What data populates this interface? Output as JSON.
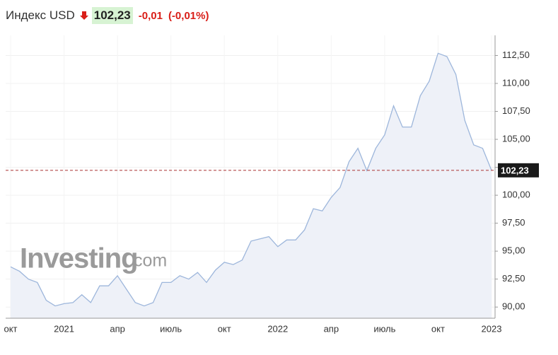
{
  "header": {
    "title": "Индекс USD",
    "price": "102,23",
    "change": "-0,01",
    "change_pct": "(-0,01%)"
  },
  "watermark": {
    "brand": "Investing",
    "suffix": ".com"
  },
  "chart_data": {
    "type": "area",
    "categories": [
      "окт",
      null,
      null,
      null,
      null,
      null,
      "2021",
      null,
      null,
      null,
      null,
      null,
      "апр",
      null,
      null,
      null,
      null,
      null,
      "июль",
      null,
      null,
      null,
      null,
      null,
      "окт",
      null,
      null,
      null,
      null,
      null,
      "2022",
      null,
      null,
      null,
      null,
      null,
      "апр",
      null,
      null,
      null,
      null,
      null,
      "июль",
      null,
      null,
      null,
      null,
      null,
      "окт",
      null,
      null,
      null,
      null,
      null,
      "2023"
    ],
    "series": [
      {
        "name": "Индекс USD",
        "color": "#9db6db",
        "values": [
          93.6,
          93.2,
          92.5,
          92.2,
          90.6,
          90.1,
          90.3,
          90.4,
          91.1,
          90.4,
          91.9,
          91.9,
          92.8,
          91.6,
          90.4,
          90.1,
          90.4,
          92.2,
          92.2,
          92.8,
          92.5,
          93.1,
          92.2,
          93.3,
          94.0,
          93.8,
          94.2,
          95.9,
          96.1,
          96.3,
          95.4,
          96.0,
          96.0,
          96.9,
          98.8,
          98.6,
          99.8,
          100.7,
          103.0,
          104.2,
          102.2,
          104.2,
          105.4,
          108.0,
          106.1,
          106.1,
          108.9,
          110.2,
          112.7,
          112.4,
          110.8,
          106.7,
          104.5,
          104.2,
          102.23
        ],
        "value_labels": [
          null,
          null,
          null,
          null,
          null,
          null,
          null,
          null,
          null,
          null,
          null,
          null,
          null,
          null,
          null,
          null,
          null,
          null,
          null,
          null,
          null,
          null,
          null,
          null,
          null,
          null,
          null,
          null,
          null,
          null,
          null,
          null,
          null,
          null,
          null,
          null,
          null,
          null,
          null,
          null,
          null,
          null,
          null,
          null,
          null,
          null,
          null,
          null,
          null,
          null,
          null,
          null,
          null,
          null,
          "102,23"
        ]
      }
    ],
    "ylim": [
      89,
      114.3
    ],
    "yticks": [
      {
        "value": 90,
        "label": "90,00"
      },
      {
        "value": 92.5,
        "label": "92,50"
      },
      {
        "value": 95,
        "label": "95,00"
      },
      {
        "value": 97.5,
        "label": "97,50"
      },
      {
        "value": 100,
        "label": "100,00"
      },
      {
        "value": 102.5,
        "label": "102,50"
      },
      {
        "value": 105,
        "label": "105,00"
      },
      {
        "value": 107.5,
        "label": "107,50"
      },
      {
        "value": 110,
        "label": "110,00"
      },
      {
        "value": 112.5,
        "label": "112,50"
      }
    ],
    "grid": true,
    "fill_color": "#eef1f8"
  }
}
